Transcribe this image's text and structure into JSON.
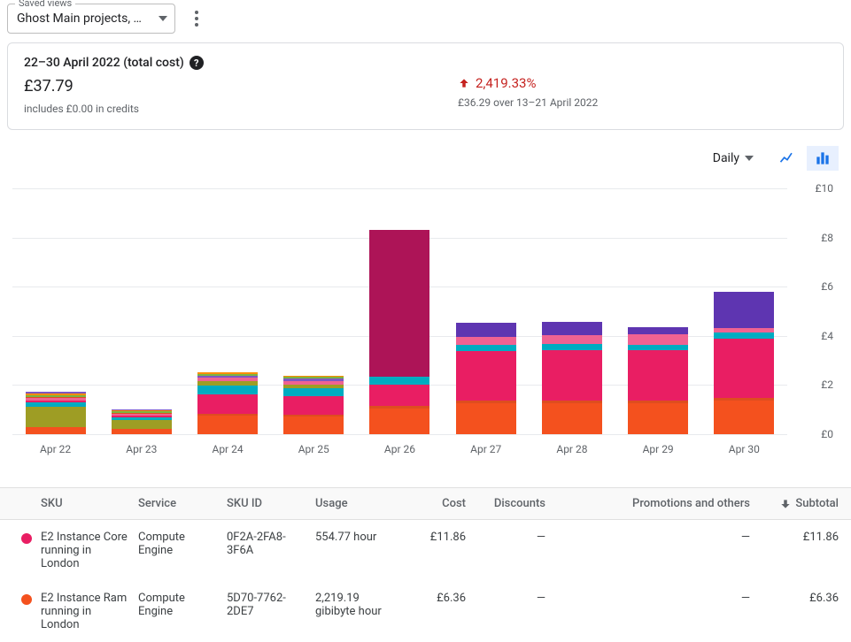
{
  "savedViews": {
    "legend": "Saved views",
    "value": "Ghost Main projects, Grou…"
  },
  "summary": {
    "title": "22–30 April 2022 (total cost)",
    "amount": "£37.79",
    "credits": "includes £0.00 in credits",
    "deltaPct": "2,419.33%",
    "deltaSub": "£36.29 over 13–21 April 2022",
    "deltaColor": "#c5221f"
  },
  "controls": {
    "frequency": "Daily"
  },
  "chart": {
    "ymax": 10,
    "ytick_step": 2,
    "currency": "£",
    "gridColor": "#e8eaed",
    "barWidthPx": 68,
    "categories": [
      "Apr 22",
      "Apr 23",
      "Apr 24",
      "Apr 25",
      "Apr 26",
      "Apr 27",
      "Apr 28",
      "Apr 29",
      "Apr 30"
    ],
    "bars": [
      {
        "segments": [
          {
            "v": 0.3,
            "c": "#f4511e"
          },
          {
            "v": 0.8,
            "c": "#9e9d24"
          },
          {
            "v": 0.18,
            "c": "#00acc1"
          },
          {
            "v": 0.1,
            "c": "#e91e63"
          },
          {
            "v": 0.08,
            "c": "#f06292"
          },
          {
            "v": 0.07,
            "c": "#de4d1f"
          },
          {
            "v": 0.07,
            "c": "#7cb342"
          },
          {
            "v": 0.06,
            "c": "#fb8c00"
          },
          {
            "v": 0.06,
            "c": "#7e57c2"
          }
        ]
      },
      {
        "segments": [
          {
            "v": 0.22,
            "c": "#f4511e"
          },
          {
            "v": 0.35,
            "c": "#9e9d24"
          },
          {
            "v": 0.12,
            "c": "#00acc1"
          },
          {
            "v": 0.08,
            "c": "#e91e63"
          },
          {
            "v": 0.06,
            "c": "#f06292"
          },
          {
            "v": 0.05,
            "c": "#de4d1f"
          },
          {
            "v": 0.05,
            "c": "#7cb342"
          },
          {
            "v": 0.04,
            "c": "#fb8c00"
          },
          {
            "v": 0.04,
            "c": "#7e57c2"
          }
        ]
      },
      {
        "segments": [
          {
            "v": 0.75,
            "c": "#f4511e"
          },
          {
            "v": 0.08,
            "c": "#de4d1f"
          },
          {
            "v": 0.78,
            "c": "#e91e63"
          },
          {
            "v": 0.38,
            "c": "#00acc1"
          },
          {
            "v": 0.18,
            "c": "#9e9d24"
          },
          {
            "v": 0.12,
            "c": "#f06292"
          },
          {
            "v": 0.1,
            "c": "#7e57c2"
          },
          {
            "v": 0.07,
            "c": "#7cb342"
          },
          {
            "v": 0.05,
            "c": "#fb8c00"
          }
        ]
      },
      {
        "segments": [
          {
            "v": 0.72,
            "c": "#f4511e"
          },
          {
            "v": 0.08,
            "c": "#de4d1f"
          },
          {
            "v": 0.75,
            "c": "#e91e63"
          },
          {
            "v": 0.32,
            "c": "#00acc1"
          },
          {
            "v": 0.15,
            "c": "#9e9d24"
          },
          {
            "v": 0.15,
            "c": "#f06292"
          },
          {
            "v": 0.1,
            "c": "#7e57c2"
          },
          {
            "v": 0.06,
            "c": "#7cb342"
          },
          {
            "v": 0.05,
            "c": "#fb8c00"
          }
        ]
      },
      {
        "segments": [
          {
            "v": 1.05,
            "c": "#f4511e"
          },
          {
            "v": 0.1,
            "c": "#de4d1f"
          },
          {
            "v": 0.85,
            "c": "#e91e63"
          },
          {
            "v": 0.35,
            "c": "#00acc1"
          },
          {
            "v": 5.95,
            "c": "#ad1457"
          }
        ]
      },
      {
        "segments": [
          {
            "v": 1.25,
            "c": "#f4511e"
          },
          {
            "v": 0.12,
            "c": "#de4d1f"
          },
          {
            "v": 2.0,
            "c": "#e91e63"
          },
          {
            "v": 0.25,
            "c": "#00acc1"
          },
          {
            "v": 0.35,
            "c": "#f06292"
          },
          {
            "v": 0.55,
            "c": "#5e35b1"
          }
        ]
      },
      {
        "segments": [
          {
            "v": 1.25,
            "c": "#f4511e"
          },
          {
            "v": 0.12,
            "c": "#de4d1f"
          },
          {
            "v": 2.05,
            "c": "#e91e63"
          },
          {
            "v": 0.25,
            "c": "#00acc1"
          },
          {
            "v": 0.35,
            "c": "#f06292"
          },
          {
            "v": 0.55,
            "c": "#5e35b1"
          }
        ]
      },
      {
        "segments": [
          {
            "v": 1.25,
            "c": "#f4511e"
          },
          {
            "v": 0.12,
            "c": "#de4d1f"
          },
          {
            "v": 2.05,
            "c": "#e91e63"
          },
          {
            "v": 0.22,
            "c": "#00acc1"
          },
          {
            "v": 0.42,
            "c": "#f06292"
          },
          {
            "v": 0.3,
            "c": "#5e35b1"
          }
        ]
      },
      {
        "segments": [
          {
            "v": 1.35,
            "c": "#f4511e"
          },
          {
            "v": 0.12,
            "c": "#de4d1f"
          },
          {
            "v": 2.4,
            "c": "#e91e63"
          },
          {
            "v": 0.28,
            "c": "#00acc1"
          },
          {
            "v": 0.18,
            "c": "#f06292"
          },
          {
            "v": 1.45,
            "c": "#5e35b1"
          }
        ]
      }
    ]
  },
  "table": {
    "headers": {
      "sku": "SKU",
      "service": "Service",
      "skuid": "SKU ID",
      "usage": "Usage",
      "cost": "Cost",
      "discounts": "Discounts",
      "promo": "Promotions and others",
      "subtotal": "Subtotal"
    },
    "rows": [
      {
        "dotColor": "#e91e63",
        "sku": "E2 Instance Core running in London",
        "service": "Compute Engine",
        "skuid": "0F2A-2FA8-3F6A",
        "usage": "554.77 hour",
        "cost": "£11.86",
        "discounts": "—",
        "promo": "—",
        "subtotal": "£11.86"
      },
      {
        "dotColor": "#f4511e",
        "sku": "E2 Instance Ram running in London",
        "service": "Compute Engine",
        "skuid": "5D70-7762-2DE7",
        "usage": "2,219.19 gibibyte hour",
        "cost": "£6.36",
        "discounts": "—",
        "promo": "—",
        "subtotal": "£6.36"
      }
    ]
  }
}
